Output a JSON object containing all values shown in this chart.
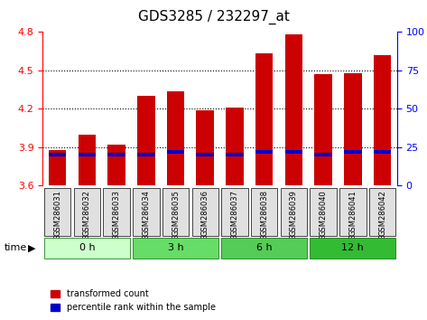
{
  "title": "GDS3285 / 232297_at",
  "samples": [
    "GSM286031",
    "GSM286032",
    "GSM286033",
    "GSM286034",
    "GSM286035",
    "GSM286036",
    "GSM286037",
    "GSM286038",
    "GSM286039",
    "GSM286040",
    "GSM286041",
    "GSM286042"
  ],
  "transformed_counts": [
    3.88,
    4.0,
    3.92,
    4.3,
    4.34,
    4.19,
    4.21,
    4.63,
    4.78,
    4.47,
    4.48,
    4.62
  ],
  "percentile_ranks": [
    20,
    20,
    20,
    20,
    22,
    20,
    20,
    22,
    22,
    20,
    22,
    22
  ],
  "ymin": 3.6,
  "ymax": 4.8,
  "yticks": [
    3.6,
    3.9,
    4.2,
    4.5,
    4.8
  ],
  "right_yticks": [
    0,
    25,
    50,
    75,
    100
  ],
  "bar_color": "#cc0000",
  "percentile_color": "#0000cc",
  "bar_width": 0.6,
  "time_groups": [
    {
      "label": "0 h",
      "samples": [
        "GSM286031",
        "GSM286032",
        "GSM286033"
      ],
      "color": "#ccffcc"
    },
    {
      "label": "3 h",
      "samples": [
        "GSM286034",
        "GSM286035",
        "GSM286036"
      ],
      "color": "#66ee66"
    },
    {
      "label": "6 h",
      "samples": [
        "GSM286037",
        "GSM286038",
        "GSM286039"
      ],
      "color": "#66ee66"
    },
    {
      "label": "12 h",
      "samples": [
        "GSM286040",
        "GSM286041",
        "GSM286042"
      ],
      "color": "#33cc33"
    }
  ],
  "time_group_colors": [
    "#ccffcc",
    "#66ee66",
    "#66ee66",
    "#33cc33"
  ],
  "xlabel": "time",
  "legend_bar": "transformed count",
  "legend_pct": "percentile rank within the sample"
}
